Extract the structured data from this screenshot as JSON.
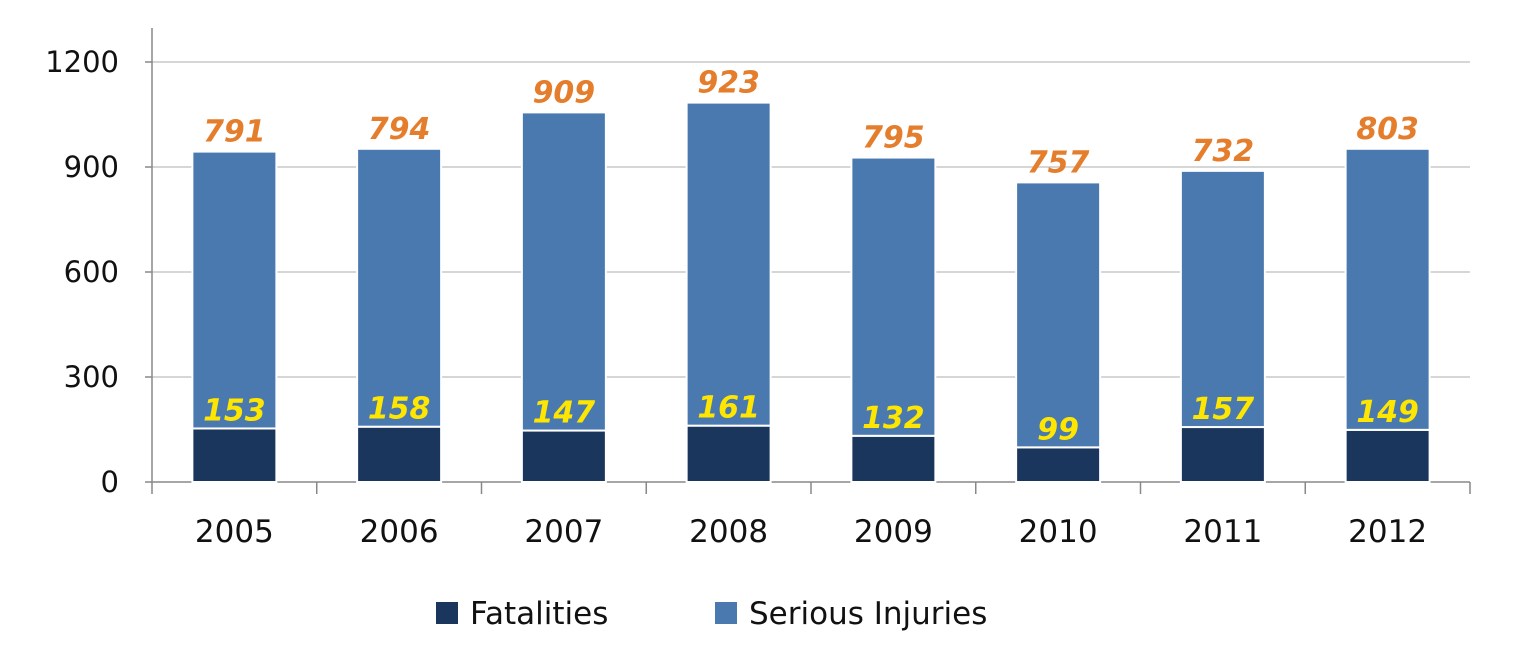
{
  "chart_data": {
    "type": "bar",
    "stacked": true,
    "title": "",
    "xlabel": "",
    "ylabel": "",
    "ylim": [
      0,
      1200
    ],
    "yticks": [
      0,
      300,
      600,
      900,
      1200
    ],
    "categories": [
      "2005",
      "2006",
      "2007",
      "2008",
      "2009",
      "2010",
      "2011",
      "2012"
    ],
    "series": [
      {
        "name": "Fatalities",
        "color": "#1b365d",
        "label_color": "#ffe600",
        "values": [
          153,
          158,
          147,
          161,
          132,
          99,
          157,
          149
        ]
      },
      {
        "name": "Serious Injuries",
        "color": "#4a79b0",
        "label_color": "#e57e2c",
        "values": [
          791,
          794,
          909,
          923,
          795,
          757,
          732,
          803
        ]
      }
    ],
    "grid": true,
    "legend": "bottom-center"
  }
}
